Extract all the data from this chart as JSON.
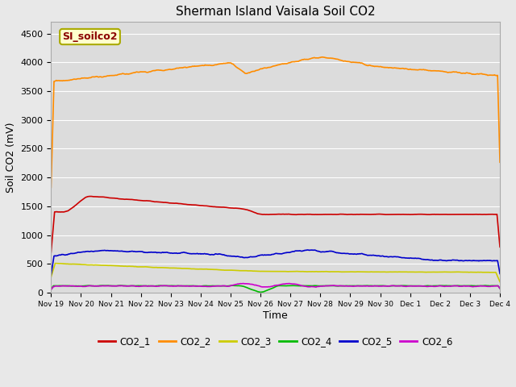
{
  "title": "Sherman Island Vaisala Soil CO2",
  "ylabel": "Soil CO2 (mV)",
  "xlabel": "Time",
  "watermark": "SI_soilco2",
  "fig_facecolor": "#e8e8e8",
  "plot_facecolor": "#dcdcdc",
  "grid_color": "#ffffff",
  "ylim": [
    0,
    4700
  ],
  "yticks": [
    0,
    500,
    1000,
    1500,
    2000,
    2500,
    3000,
    3500,
    4000,
    4500
  ],
  "x_labels": [
    "Nov 19",
    "Nov 20",
    "Nov 21",
    "Nov 22",
    "Nov 23",
    "Nov 24",
    "Nov 25",
    "Nov 26",
    "Nov 27",
    "Nov 28",
    "Nov 29",
    "Nov 30",
    "Dec 1",
    "Dec 2",
    "Dec 3",
    "Dec 4"
  ],
  "series": {
    "CO2_1": {
      "color": "#cc0000",
      "linewidth": 1.2
    },
    "CO2_2": {
      "color": "#ff8c00",
      "linewidth": 1.2
    },
    "CO2_3": {
      "color": "#cccc00",
      "linewidth": 1.2
    },
    "CO2_4": {
      "color": "#00bb00",
      "linewidth": 1.2
    },
    "CO2_5": {
      "color": "#0000cc",
      "linewidth": 1.2
    },
    "CO2_6": {
      "color": "#cc00cc",
      "linewidth": 1.2
    }
  },
  "legend_entries": [
    "CO2_1",
    "CO2_2",
    "CO2_3",
    "CO2_4",
    "CO2_5",
    "CO2_6"
  ],
  "legend_colors": [
    "#cc0000",
    "#ff8c00",
    "#cccc00",
    "#00bb00",
    "#0000cc",
    "#cc00cc"
  ],
  "watermark_facecolor": "#ffffcc",
  "watermark_edgecolor": "#aaaa00",
  "watermark_textcolor": "#8b0000"
}
